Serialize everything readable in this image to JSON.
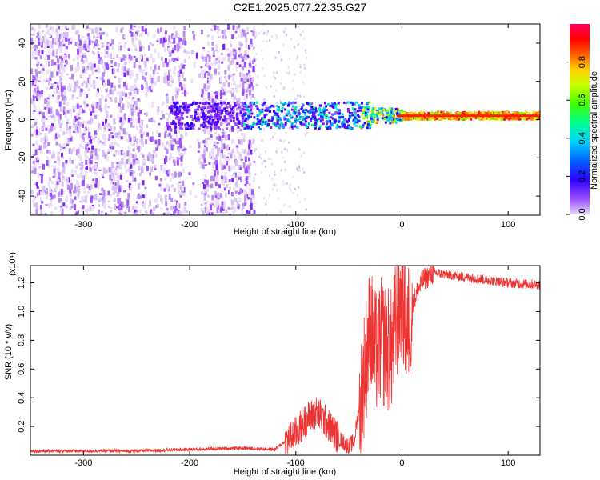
{
  "title": "C2E1.2025.077.22.35.G27",
  "chart_data": [
    {
      "type": "heatmap",
      "xlabel": "Height of straight line (km)",
      "ylabel": "Frequency (Hz)",
      "xlim": [
        -350,
        130
      ],
      "ylim": [
        -50,
        50
      ],
      "xticks": [
        -300,
        -200,
        -100,
        0,
        100
      ],
      "yticks": [
        -40,
        -20,
        0,
        20,
        40
      ],
      "colorbar": {
        "label": "Normalized spectral amplitude",
        "ticks": [
          "0.0",
          "0.2",
          "0.4",
          "0.6",
          "0.8"
        ],
        "range": [
          0,
          1
        ],
        "colormap": [
          "#e6d8f5",
          "#7b00ff",
          "#0000ff",
          "#00c8ff",
          "#00ff80",
          "#80ff00",
          "#ffff00",
          "#ff8000",
          "#ff0000",
          "#ff0060"
        ]
      },
      "band_center_hz": 2,
      "noise_region_km": [
        -350,
        -140
      ],
      "signal_onset_km": -220
    },
    {
      "type": "line",
      "xlabel": "Height of straight line (km)",
      "ylabel": "SNR (10 * v/v)",
      "yscale_label": "(x10⁴)",
      "xlim": [
        -350,
        130
      ],
      "ylim": [
        0,
        1.32
      ],
      "xticks": [
        -300,
        -200,
        -100,
        0,
        100
      ],
      "yticks": [
        "0.2",
        "0.4",
        "0.6",
        "0.8",
        "1.0",
        "1.2"
      ],
      "color": "#ee3333",
      "series": [
        {
          "x": [
            -350,
            -300,
            -250,
            -200,
            -150,
            -120,
            -100,
            -90,
            -80,
            -70,
            -60,
            -50,
            -45,
            -40,
            -35,
            -30,
            -25,
            -20,
            -15,
            -10,
            -5,
            0,
            5,
            10,
            15,
            20,
            30,
            40,
            50,
            60,
            80,
            100,
            120,
            130
          ],
          "y": [
            0.03,
            0.03,
            0.03,
            0.04,
            0.05,
            0.04,
            0.15,
            0.25,
            0.3,
            0.22,
            0.12,
            0.06,
            0.1,
            0.35,
            0.6,
            0.9,
            0.7,
            0.8,
            0.75,
            0.72,
            0.95,
            1.1,
            0.85,
            1.05,
            1.15,
            1.22,
            1.27,
            1.26,
            1.25,
            1.24,
            1.22,
            1.2,
            1.19,
            1.19
          ]
        }
      ]
    }
  ]
}
